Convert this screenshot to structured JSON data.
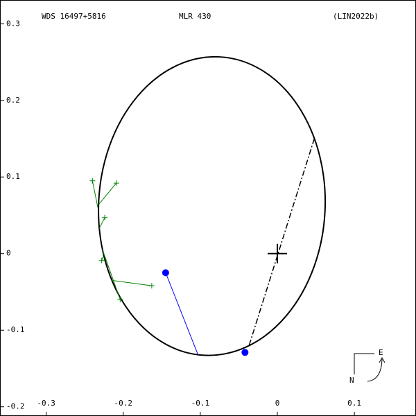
{
  "chart_data": {
    "type": "orbit",
    "title": "WDS 16497+5816",
    "subtitle": "MLR 430",
    "reference": "(LIN2022b)",
    "xlim": [
      -0.36,
      0.18
    ],
    "ylim": [
      -0.212,
      0.331
    ],
    "xticks": [
      -0.3,
      -0.2,
      -0.1,
      0.0,
      0.1
    ],
    "yticks": [
      0.3,
      0.2,
      0.1,
      0.0,
      -0.1,
      -0.2
    ],
    "orbit": {
      "cx": -0.085,
      "cy": 0.062,
      "a": 0.147,
      "b": 0.195,
      "angle": 3,
      "color": "#000000"
    },
    "node_line": {
      "x": [
        0.048,
        -0.037
      ],
      "y": [
        0.15,
        -0.121
      ]
    },
    "primary": {
      "x": 0.0,
      "y": 0.0
    },
    "series": [
      {
        "color": "#008000",
        "marker": "plus",
        "x": [
          -0.24,
          -0.209,
          -0.224,
          -0.228,
          -0.163,
          -0.204
        ],
        "y": [
          0.095,
          0.092,
          0.047,
          -0.009,
          -0.042,
          -0.06
        ],
        "fit_x": [
          -0.233,
          -0.232,
          -0.231,
          -0.226,
          -0.215,
          -0.227
        ],
        "fit_y": [
          0.06,
          0.064,
          0.033,
          -0.004,
          -0.035,
          0.005
        ]
      },
      {
        "color": "#0000ff",
        "marker": "dot",
        "x": [
          -0.145,
          -0.042
        ],
        "y": [
          -0.025,
          -0.129
        ],
        "fit_x": [
          -0.103,
          -0.042
        ],
        "fit_y": [
          -0.132,
          -0.129
        ]
      }
    ],
    "compass": {
      "east": "E",
      "north": "N"
    }
  }
}
